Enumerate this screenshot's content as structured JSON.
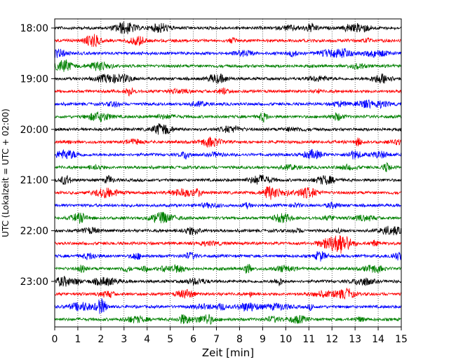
{
  "chart_data": {
    "type": "line",
    "title": "",
    "xlabel": "Zeit  [min]",
    "ylabel": "UTC (Lokalzeit = UTC + 02:00)",
    "xlim": [
      0,
      15
    ],
    "x_ticks": [
      "0",
      "1",
      "2",
      "3",
      "4",
      "5",
      "6",
      "7",
      "8",
      "9",
      "10",
      "11",
      "12",
      "13",
      "14",
      "15"
    ],
    "y_tick_labels": [
      "18:00",
      "19:00",
      "20:00",
      "21:00",
      "22:00",
      "23:00"
    ],
    "grid": "vertical-dotted",
    "trace_colors": [
      "#000000",
      "#ff0000",
      "#0000ff",
      "#008000"
    ],
    "trace_count": 24,
    "trace_interval_minutes": 15,
    "start_time": "18:00"
  }
}
